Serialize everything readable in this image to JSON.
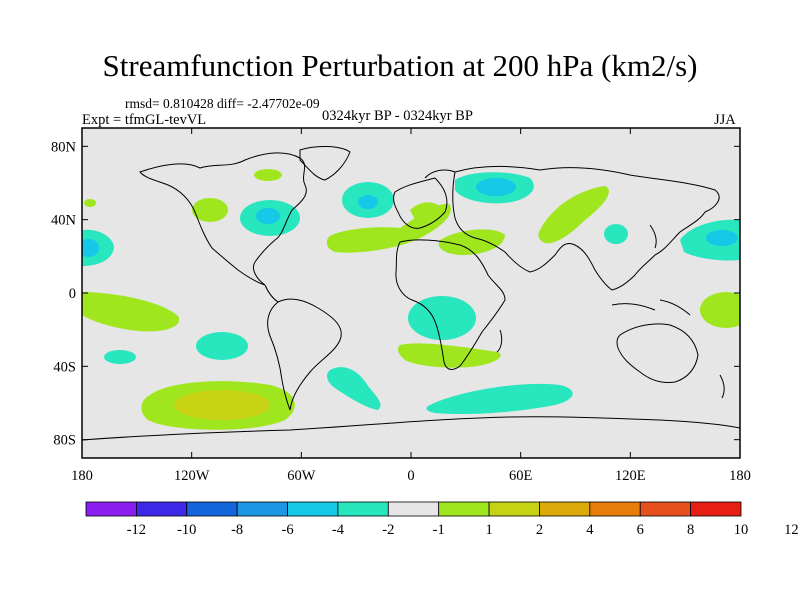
{
  "title": "Streamfunction Perturbation at 200 hPa (km2/s)",
  "stats": "rmsd= 0.810428 diff= -2.47702e-09",
  "experiment": "Expt = tfmGL-tevVL",
  "period": "0324kyr BP - 0324kyr BP",
  "season": "JJA",
  "map": {
    "background": "#e6e6e6",
    "lon_range": [
      -180,
      180
    ],
    "lat_range": [
      -90,
      90
    ],
    "x_ticks": [
      "180",
      "120W",
      "60W",
      "0",
      "60E",
      "120E",
      "180"
    ],
    "y_ticks": [
      "80N",
      "40N",
      "0",
      "40S",
      "80S"
    ]
  },
  "colorbar": {
    "colors": [
      "#8a1ef0",
      "#3c28e6",
      "#1464dc",
      "#1e96e6",
      "#14c8e6",
      "#28e6be",
      "#e6e6e6",
      "#a0e61e",
      "#c8d214",
      "#dcaa0a",
      "#e67d0a",
      "#e6501e",
      "#e61e14"
    ],
    "labels": [
      "-12",
      "-10",
      "-8",
      "-6",
      "-4",
      "-2",
      "-1",
      "1",
      "2",
      "4",
      "6",
      "8",
      "10",
      "12"
    ]
  },
  "fill_colors": {
    "neg1": "#28e6be",
    "neg2": "#14c8e6",
    "pos1": "#a0e61e",
    "pos2": "#c8d214"
  }
}
